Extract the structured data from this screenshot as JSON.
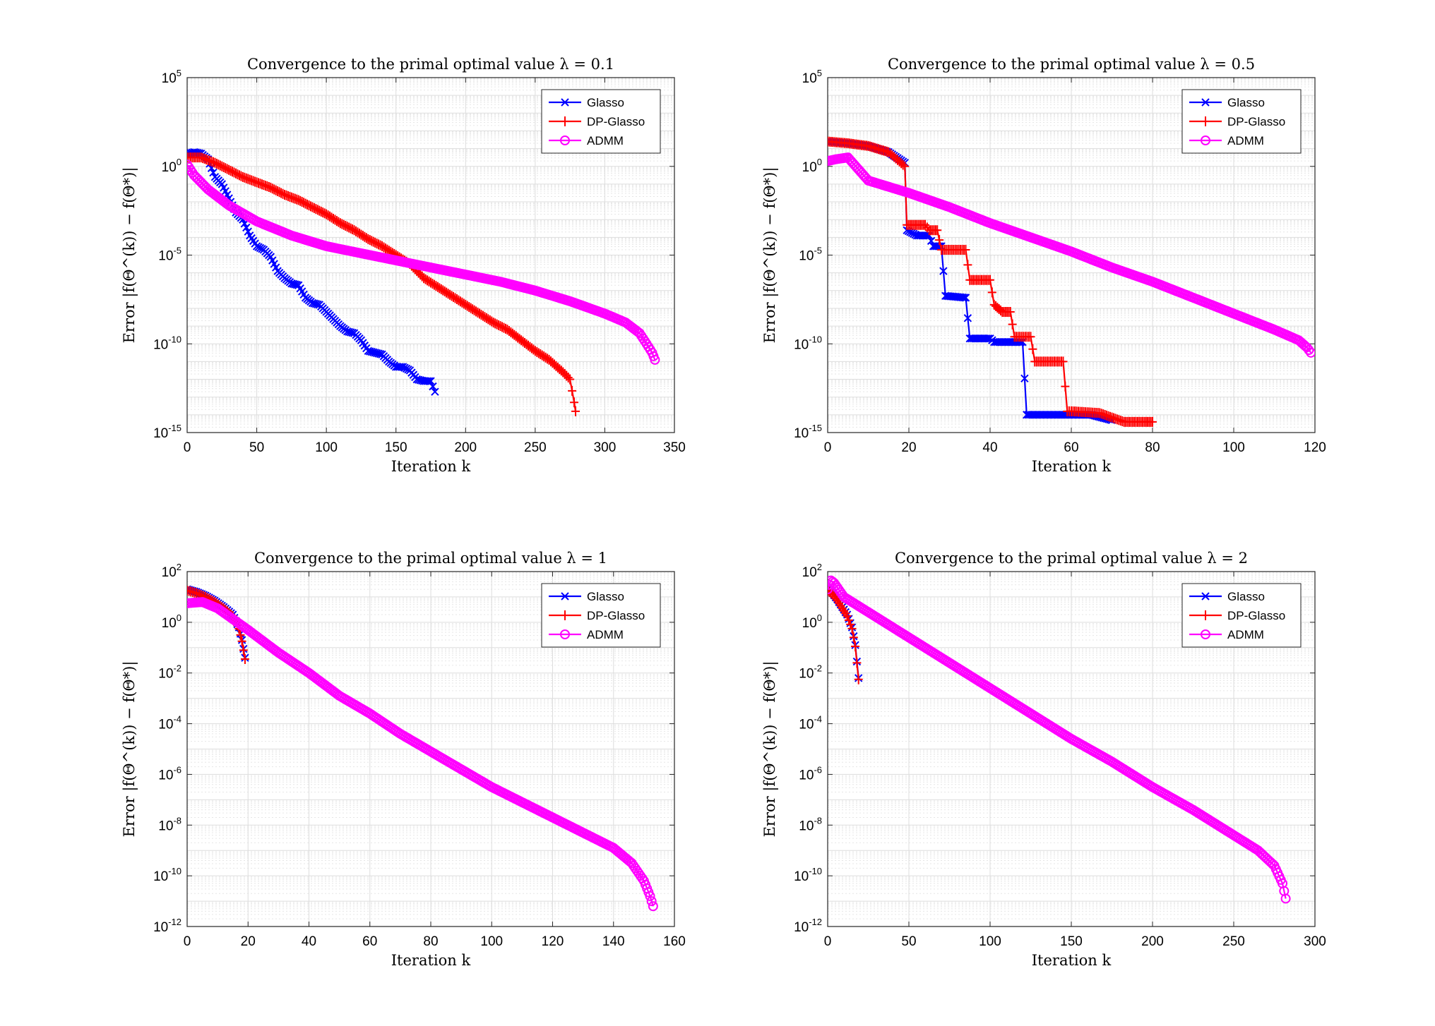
{
  "colors": {
    "Glasso": "#0000ff",
    "DP-Glasso": "#ff0000",
    "ADMM": "#ff00ff",
    "grid": "#dddddd",
    "axis": "#262626"
  },
  "legend_entries": [
    "Glasso",
    "DP-Glasso",
    "ADMM"
  ],
  "chart_data": [
    {
      "type": "line",
      "title": "Convergence to the primal optimal value λ = 0.1",
      "xlabel": "Iteration k",
      "ylabel": "Error |f(Θ^(k)) − f(Θ*)|",
      "xlim": [
        0,
        350
      ],
      "xticks": [
        0,
        50,
        100,
        150,
        200,
        250,
        300,
        350
      ],
      "yscale": "log",
      "ylim_exp": [
        -15,
        5
      ],
      "ytick_exps": [
        -15,
        -10,
        -5,
        0,
        5
      ],
      "legend": "top-right",
      "grid": true,
      "series": [
        {
          "name": "Glasso",
          "marker": "x",
          "points": [
            [
              0,
              0.7
            ],
            [
              5,
              0.8
            ],
            [
              10,
              0.72
            ],
            [
              15,
              0.4
            ],
            [
              20,
              -0.6
            ],
            [
              25,
              -1.0
            ],
            [
              30,
              -1.8
            ],
            [
              35,
              -2.6
            ],
            [
              40,
              -3.0
            ],
            [
              45,
              -3.9
            ],
            [
              50,
              -4.5
            ],
            [
              55,
              -4.7
            ],
            [
              60,
              -5.1
            ],
            [
              65,
              -5.9
            ],
            [
              70,
              -6.3
            ],
            [
              75,
              -6.6
            ],
            [
              80,
              -6.7
            ],
            [
              85,
              -7.4
            ],
            [
              90,
              -7.7
            ],
            [
              95,
              -7.8
            ],
            [
              100,
              -8.2
            ],
            [
              105,
              -8.6
            ],
            [
              110,
              -9.0
            ],
            [
              115,
              -9.3
            ],
            [
              120,
              -9.4
            ],
            [
              125,
              -9.8
            ],
            [
              130,
              -10.4
            ],
            [
              135,
              -10.5
            ],
            [
              140,
              -10.6
            ],
            [
              145,
              -11.0
            ],
            [
              150,
              -11.3
            ],
            [
              155,
              -11.3
            ],
            [
              160,
              -11.5
            ],
            [
              165,
              -12.0
            ],
            [
              170,
              -12.1
            ],
            [
              175,
              -12.1
            ],
            [
              178,
              -12.7
            ]
          ]
        },
        {
          "name": "DP-Glasso",
          "marker": "+",
          "points": [
            [
              0,
              0.5
            ],
            [
              10,
              0.5
            ],
            [
              20,
              0.2
            ],
            [
              30,
              -0.2
            ],
            [
              40,
              -0.6
            ],
            [
              50,
              -0.9
            ],
            [
              60,
              -1.2
            ],
            [
              70,
              -1.6
            ],
            [
              80,
              -1.9
            ],
            [
              90,
              -2.3
            ],
            [
              100,
              -2.7
            ],
            [
              110,
              -3.2
            ],
            [
              120,
              -3.6
            ],
            [
              130,
              -4.1
            ],
            [
              140,
              -4.5
            ],
            [
              150,
              -5.0
            ],
            [
              160,
              -5.5
            ],
            [
              170,
              -6.3
            ],
            [
              180,
              -6.8
            ],
            [
              190,
              -7.3
            ],
            [
              200,
              -7.8
            ],
            [
              210,
              -8.3
            ],
            [
              220,
              -8.8
            ],
            [
              230,
              -9.2
            ],
            [
              240,
              -9.8
            ],
            [
              250,
              -10.4
            ],
            [
              260,
              -10.9
            ],
            [
              270,
              -11.6
            ],
            [
              275,
              -12.0
            ],
            [
              278,
              -13.3
            ],
            [
              279,
              -13.8
            ]
          ]
        },
        {
          "name": "ADMM",
          "marker": "o",
          "points": [
            [
              0,
              0.1
            ],
            [
              5,
              -0.5
            ],
            [
              15,
              -1.3
            ],
            [
              30,
              -2.2
            ],
            [
              50,
              -3.1
            ],
            [
              75,
              -3.9
            ],
            [
              100,
              -4.5
            ],
            [
              125,
              -4.9
            ],
            [
              150,
              -5.3
            ],
            [
              175,
              -5.7
            ],
            [
              200,
              -6.1
            ],
            [
              225,
              -6.5
            ],
            [
              250,
              -7.0
            ],
            [
              275,
              -7.6
            ],
            [
              300,
              -8.3
            ],
            [
              315,
              -8.8
            ],
            [
              325,
              -9.4
            ],
            [
              330,
              -10.0
            ],
            [
              334,
              -10.5
            ],
            [
              336,
              -10.9
            ]
          ]
        }
      ]
    },
    {
      "type": "line",
      "title": "Convergence to the primal optimal value λ = 0.5",
      "xlabel": "Iteration k",
      "ylabel": "Error |f(Θ^(k)) − f(Θ*)|",
      "xlim": [
        0,
        120
      ],
      "xticks": [
        0,
        20,
        40,
        60,
        80,
        100,
        120
      ],
      "yscale": "log",
      "ylim_exp": [
        -15,
        5
      ],
      "ytick_exps": [
        -15,
        -10,
        -5,
        0,
        5
      ],
      "legend": "top-right",
      "grid": true,
      "series": [
        {
          "name": "Glasso",
          "marker": "x",
          "points": [
            [
              0,
              1.4
            ],
            [
              5,
              1.3
            ],
            [
              10,
              1.15
            ],
            [
              15,
              0.8
            ],
            [
              19,
              0.2
            ],
            [
              19.5,
              -3.6
            ],
            [
              22,
              -3.9
            ],
            [
              25,
              -3.9
            ],
            [
              26,
              -4.5
            ],
            [
              28,
              -4.5
            ],
            [
              29,
              -7.3
            ],
            [
              34,
              -7.4
            ],
            [
              35,
              -9.7
            ],
            [
              40,
              -9.7
            ],
            [
              41,
              -9.9
            ],
            [
              48,
              -9.9
            ],
            [
              49,
              -14.0
            ],
            [
              60,
              -14.0
            ],
            [
              65,
              -14.0
            ],
            [
              70,
              -14.3
            ]
          ]
        },
        {
          "name": "DP-Glasso",
          "marker": "+",
          "points": [
            [
              0,
              1.4
            ],
            [
              5,
              1.3
            ],
            [
              10,
              1.15
            ],
            [
              15,
              0.8
            ],
            [
              19,
              0.0
            ],
            [
              19.5,
              -3.3
            ],
            [
              24,
              -3.3
            ],
            [
              25,
              -3.6
            ],
            [
              27,
              -3.6
            ],
            [
              28,
              -4.7
            ],
            [
              34,
              -4.7
            ],
            [
              35,
              -6.4
            ],
            [
              40,
              -6.4
            ],
            [
              41,
              -7.8
            ],
            [
              43,
              -8.2
            ],
            [
              45,
              -8.2
            ],
            [
              46,
              -9.6
            ],
            [
              50,
              -9.6
            ],
            [
              51,
              -11.0
            ],
            [
              58,
              -11.0
            ],
            [
              59,
              -13.8
            ],
            [
              60,
              -13.8
            ],
            [
              67,
              -13.9
            ],
            [
              73,
              -14.4
            ],
            [
              78,
              -14.4
            ],
            [
              80,
              -14.4
            ]
          ]
        },
        {
          "name": "ADMM",
          "marker": "o",
          "points": [
            [
              0,
              0.3
            ],
            [
              2,
              0.4
            ],
            [
              5,
              0.5
            ],
            [
              10,
              -0.8
            ],
            [
              20,
              -1.5
            ],
            [
              30,
              -2.3
            ],
            [
              40,
              -3.2
            ],
            [
              50,
              -4.0
            ],
            [
              60,
              -4.8
            ],
            [
              70,
              -5.7
            ],
            [
              80,
              -6.5
            ],
            [
              90,
              -7.4
            ],
            [
              100,
              -8.3
            ],
            [
              110,
              -9.2
            ],
            [
              116,
              -9.8
            ],
            [
              118,
              -10.2
            ],
            [
              119,
              -10.5
            ]
          ]
        }
      ]
    },
    {
      "type": "line",
      "title": "Convergence to the primal optimal value λ = 1",
      "xlabel": "Iteration k",
      "ylabel": "Error |f(Θ^(k)) − f(Θ*)|",
      "xlim": [
        0,
        160
      ],
      "xticks": [
        0,
        20,
        40,
        60,
        80,
        100,
        120,
        140,
        160
      ],
      "yscale": "log",
      "ylim_exp": [
        -12,
        2
      ],
      "ytick_exps": [
        -12,
        -10,
        -8,
        -6,
        -4,
        -2,
        0,
        2
      ],
      "legend": "top-right",
      "grid": true,
      "series": [
        {
          "name": "Glasso",
          "marker": "x",
          "points": [
            [
              0,
              1.3
            ],
            [
              3,
              1.2
            ],
            [
              6,
              1.05
            ],
            [
              9,
              0.85
            ],
            [
              12,
              0.6
            ],
            [
              15,
              0.3
            ],
            [
              17,
              -0.2
            ],
            [
              18,
              -0.7
            ],
            [
              19,
              -1.4
            ]
          ]
        },
        {
          "name": "DP-Glasso",
          "marker": "+",
          "points": [
            [
              0,
              1.25
            ],
            [
              3,
              1.15
            ],
            [
              6,
              1.0
            ],
            [
              9,
              0.8
            ],
            [
              12,
              0.55
            ],
            [
              15,
              0.25
            ],
            [
              17,
              -0.25
            ],
            [
              18,
              -0.75
            ],
            [
              19,
              -1.45
            ]
          ]
        },
        {
          "name": "ADMM",
          "marker": "o",
          "points": [
            [
              0,
              0.75
            ],
            [
              5,
              0.8
            ],
            [
              10,
              0.55
            ],
            [
              20,
              -0.3
            ],
            [
              30,
              -1.2
            ],
            [
              40,
              -2.0
            ],
            [
              50,
              -2.9
            ],
            [
              60,
              -3.6
            ],
            [
              70,
              -4.4
            ],
            [
              80,
              -5.1
            ],
            [
              90,
              -5.8
            ],
            [
              100,
              -6.5
            ],
            [
              110,
              -7.1
            ],
            [
              120,
              -7.7
            ],
            [
              130,
              -8.3
            ],
            [
              140,
              -8.9
            ],
            [
              146,
              -9.5
            ],
            [
              150,
              -10.2
            ],
            [
              152,
              -10.8
            ],
            [
              153,
              -11.2
            ]
          ]
        }
      ]
    },
    {
      "type": "line",
      "title": "Convergence to the primal optimal value λ = 2",
      "xlabel": "Iteration k",
      "ylabel": "Error |f(Θ^(k)) − f(Θ*)|",
      "xlim": [
        0,
        300
      ],
      "xticks": [
        0,
        50,
        100,
        150,
        200,
        250,
        300
      ],
      "yscale": "log",
      "ylim_exp": [
        -12,
        2
      ],
      "ytick_exps": [
        -12,
        -10,
        -8,
        -6,
        -4,
        -2,
        0,
        2
      ],
      "legend": "top-right",
      "grid": true,
      "series": [
        {
          "name": "Glasso",
          "marker": "x",
          "points": [
            [
              0,
              1.3
            ],
            [
              3,
              1.15
            ],
            [
              6,
              0.9
            ],
            [
              9,
              0.6
            ],
            [
              12,
              0.3
            ],
            [
              15,
              -0.2
            ],
            [
              17,
              -0.9
            ],
            [
              19,
              -2.2
            ]
          ]
        },
        {
          "name": "DP-Glasso",
          "marker": "+",
          "points": [
            [
              0,
              1.25
            ],
            [
              3,
              1.1
            ],
            [
              6,
              0.85
            ],
            [
              9,
              0.55
            ],
            [
              12,
              0.25
            ],
            [
              15,
              -0.25
            ],
            [
              17,
              -0.95
            ],
            [
              19,
              -2.25
            ]
          ]
        },
        {
          "name": "ADMM",
          "marker": "o",
          "points": [
            [
              0,
              1.3
            ],
            [
              2,
              1.65
            ],
            [
              4,
              1.55
            ],
            [
              10,
              1.0
            ],
            [
              25,
              0.4
            ],
            [
              50,
              -0.6
            ],
            [
              75,
              -1.6
            ],
            [
              100,
              -2.6
            ],
            [
              125,
              -3.6
            ],
            [
              150,
              -4.6
            ],
            [
              175,
              -5.5
            ],
            [
              200,
              -6.5
            ],
            [
              225,
              -7.4
            ],
            [
              250,
              -8.4
            ],
            [
              265,
              -9.0
            ],
            [
              275,
              -9.6
            ],
            [
              280,
              -10.3
            ],
            [
              282,
              -10.9
            ]
          ]
        }
      ]
    }
  ]
}
